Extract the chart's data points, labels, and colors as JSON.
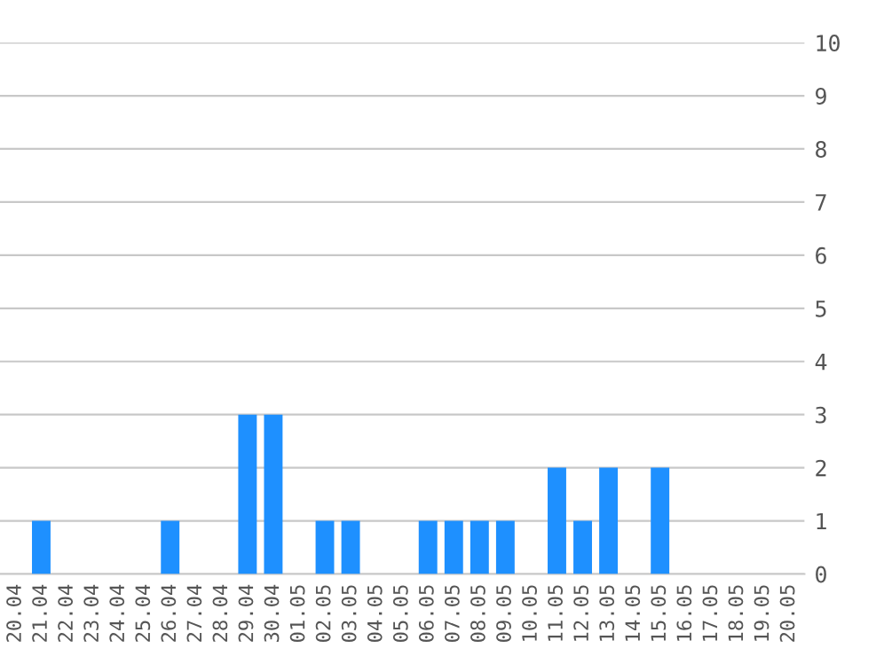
{
  "chart_data": {
    "type": "bar",
    "categories": [
      "20.04",
      "21.04",
      "22.04",
      "23.04",
      "24.04",
      "25.04",
      "26.04",
      "27.04",
      "28.04",
      "29.04",
      "30.04",
      "01.05",
      "02.05",
      "03.05",
      "04.05",
      "05.05",
      "06.05",
      "07.05",
      "08.05",
      "09.05",
      "10.05",
      "11.05",
      "12.05",
      "13.05",
      "14.05",
      "15.05",
      "16.05",
      "17.05",
      "18.05",
      "19.05",
      "20.05"
    ],
    "values": [
      0,
      1,
      0,
      0,
      0,
      0,
      1,
      0,
      0,
      3,
      3,
      0,
      1,
      1,
      0,
      0,
      1,
      1,
      1,
      1,
      0,
      2,
      1,
      2,
      0,
      2,
      0,
      0,
      0,
      0,
      0
    ],
    "color": "#1e90ff",
    "ylim": [
      0,
      10
    ],
    "yticks": [
      0,
      1,
      2,
      3,
      4,
      5,
      6,
      7,
      8,
      9,
      10
    ],
    "grid": "y"
  }
}
